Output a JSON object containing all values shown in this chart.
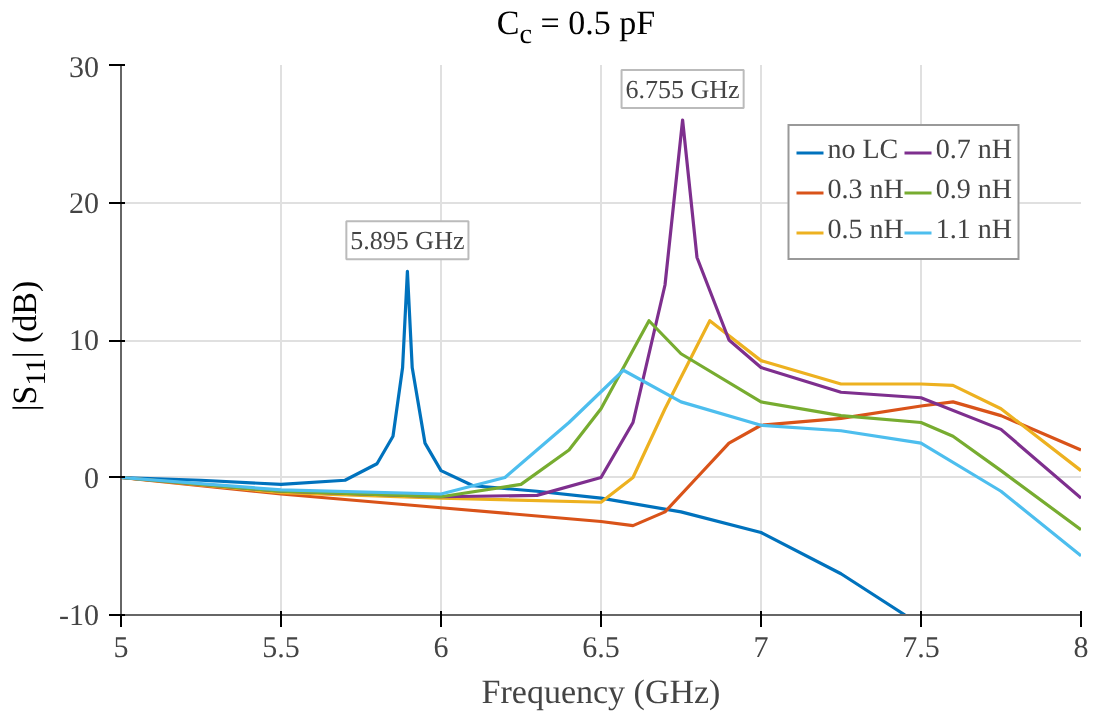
{
  "chart_data": {
    "type": "line",
    "title": "C$_{c}$ = 0.5 pF",
    "xlabel": "Frequency (GHz)",
    "ylabel": "|S$_{11}$| (dB)",
    "xlim": [
      5,
      8
    ],
    "ylim": [
      -10,
      30
    ],
    "xticks": [
      5,
      5.5,
      6,
      6.5,
      7,
      7.5,
      8
    ],
    "yticks": [
      -10,
      0,
      10,
      20,
      30
    ],
    "grid": true,
    "legend": "top right",
    "line_style": "solid",
    "marker": "none",
    "annotations": [
      {
        "text": "5.895 GHz",
        "x": 5.895,
        "y": 15
      },
      {
        "text": "6.755 GHz",
        "x": 6.755,
        "y": 26
      }
    ],
    "series": [
      {
        "name": "no LC",
        "color": "#0072bd",
        "x": [
          5,
          5.25,
          5.5,
          5.7,
          5.8,
          5.85,
          5.88,
          5.895,
          5.91,
          5.95,
          6,
          6.1,
          6.3,
          6.5,
          6.75,
          7,
          7.25,
          7.45
        ],
        "values": [
          0,
          -0.2,
          -0.5,
          -0.2,
          1,
          3,
          8,
          15,
          8,
          2.5,
          0.5,
          -0.6,
          -1,
          -1.5,
          -2.5,
          -4,
          -7,
          -10
        ]
      },
      {
        "name": "0.3 nH",
        "color": "#d95319",
        "x": [
          5,
          5.5,
          6,
          6.5,
          6.6,
          6.7,
          6.8,
          6.9,
          7,
          7.25,
          7.5,
          7.6,
          7.75,
          8
        ],
        "values": [
          0,
          -1.2,
          -2.2,
          -3.2,
          -3.5,
          -2.5,
          0,
          2.5,
          3.8,
          4.3,
          5.2,
          5.5,
          4.5,
          2
        ]
      },
      {
        "name": "0.5 nH",
        "color": "#edb120",
        "x": [
          5,
          5.5,
          6,
          6.5,
          6.6,
          6.7,
          6.84,
          7,
          7.25,
          7.5,
          7.6,
          7.75,
          8
        ],
        "values": [
          0,
          -1.1,
          -1.5,
          -1.8,
          0,
          5,
          11.4,
          8.5,
          6.8,
          6.8,
          6.7,
          5,
          0.5
        ]
      },
      {
        "name": "0.7 nH",
        "color": "#7e2f8e",
        "x": [
          5,
          5.5,
          6,
          6.3,
          6.5,
          6.6,
          6.7,
          6.755,
          6.8,
          6.9,
          7,
          7.25,
          7.5,
          7.75,
          8
        ],
        "values": [
          0,
          -1,
          -1.4,
          -1.3,
          0,
          4,
          14,
          26,
          16,
          10,
          8,
          6.2,
          5.8,
          3.5,
          -1.5
        ]
      },
      {
        "name": "0.9 nH",
        "color": "#77ac30",
        "x": [
          5,
          5.5,
          6,
          6.25,
          6.4,
          6.5,
          6.65,
          6.75,
          7,
          7.25,
          7.5,
          7.6,
          7.75,
          8
        ],
        "values": [
          0,
          -1,
          -1.4,
          -0.5,
          2,
          5,
          11.4,
          9,
          5.5,
          4.5,
          4,
          3,
          0.5,
          -3.8
        ]
      },
      {
        "name": "1.1 nH",
        "color": "#4dbeee",
        "x": [
          5,
          5.5,
          6,
          6.2,
          6.4,
          6.57,
          6.75,
          7,
          7.25,
          7.5,
          7.75,
          8
        ],
        "values": [
          0,
          -0.9,
          -1.2,
          0,
          4,
          7.8,
          5.5,
          3.8,
          3.4,
          2.5,
          -1,
          -5.7
        ]
      }
    ]
  }
}
